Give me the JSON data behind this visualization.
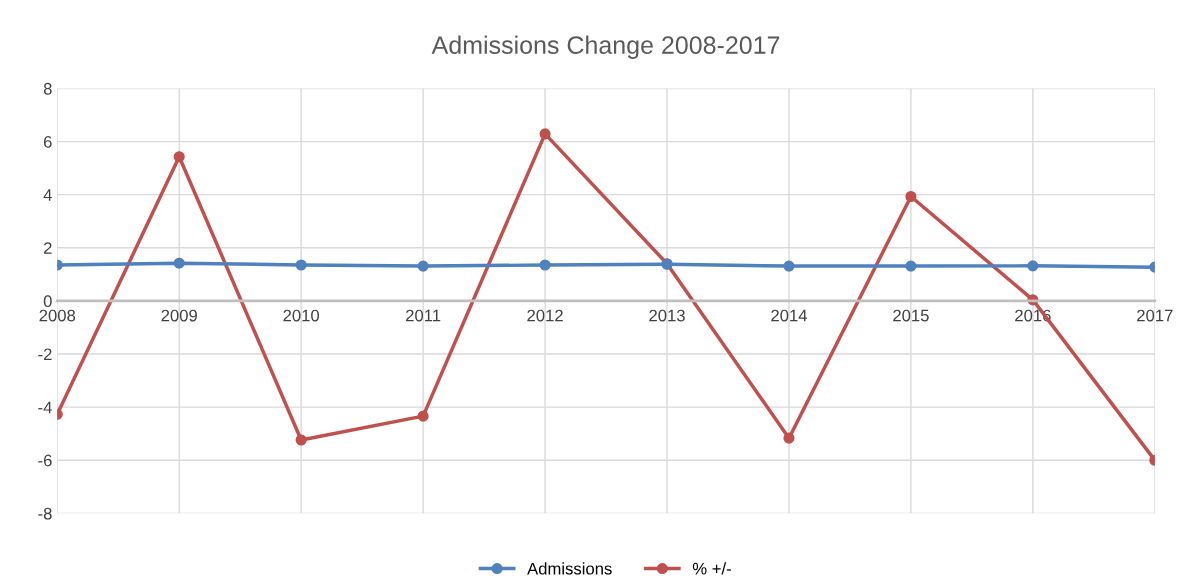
{
  "chart_data": {
    "type": "line",
    "title": "Admissions Change 2008-2017",
    "categories": [
      "2008",
      "2009",
      "2010",
      "2011",
      "2012",
      "2013",
      "2014",
      "2015",
      "2016",
      "2017"
    ],
    "series": [
      {
        "name": "Admissions",
        "color": "#4f81bd",
        "values": [
          1.35,
          1.42,
          1.35,
          1.31,
          1.35,
          1.38,
          1.31,
          1.31,
          1.32,
          1.27
        ]
      },
      {
        "name": "% +/-",
        "color": "#c0504d",
        "values": [
          -4.27,
          5.43,
          -5.24,
          -4.34,
          6.29,
          1.4,
          -5.17,
          3.93,
          0.04,
          -6.0
        ]
      }
    ],
    "ylim": [
      -8,
      8
    ],
    "yticks": [
      -8,
      -6,
      -4,
      -2,
      0,
      2,
      4,
      6,
      8
    ],
    "grid": true,
    "legend": "bottom",
    "marker": "circle",
    "line_style": "solid"
  }
}
